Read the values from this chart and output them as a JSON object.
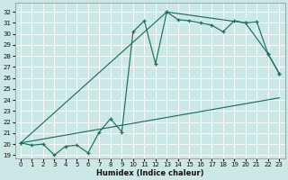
{
  "xlabel": "Humidex (Indice chaleur)",
  "bg_color": "#cce8e4",
  "line_color": "#1a7060",
  "xlim": [
    -0.5,
    23.5
  ],
  "ylim": [
    18.7,
    32.8
  ],
  "yticks": [
    19,
    20,
    21,
    22,
    23,
    24,
    25,
    26,
    27,
    28,
    29,
    30,
    31,
    32
  ],
  "xticks": [
    0,
    1,
    2,
    3,
    4,
    5,
    6,
    7,
    8,
    9,
    10,
    11,
    12,
    13,
    14,
    15,
    16,
    17,
    18,
    19,
    20,
    21,
    22,
    23
  ],
  "line1_x": [
    0,
    1,
    2,
    3,
    4,
    5,
    6,
    7,
    8,
    9,
    10,
    11,
    12,
    13,
    14,
    15,
    16,
    17,
    18,
    19,
    20,
    21,
    22,
    23
  ],
  "line1_y": [
    20.1,
    19.9,
    20.0,
    19.0,
    19.8,
    19.9,
    19.2,
    21.1,
    22.3,
    21.1,
    30.2,
    31.2,
    27.3,
    32.0,
    31.3,
    31.2,
    31.0,
    30.8,
    30.2,
    31.2,
    31.0,
    31.1,
    28.2,
    26.4
  ],
  "line2_x": [
    0,
    13,
    20,
    22,
    23
  ],
  "line2_y": [
    20.1,
    32.0,
    31.0,
    28.2,
    26.4
  ],
  "line3_x": [
    0,
    23
  ],
  "line3_y": [
    20.1,
    24.2
  ]
}
